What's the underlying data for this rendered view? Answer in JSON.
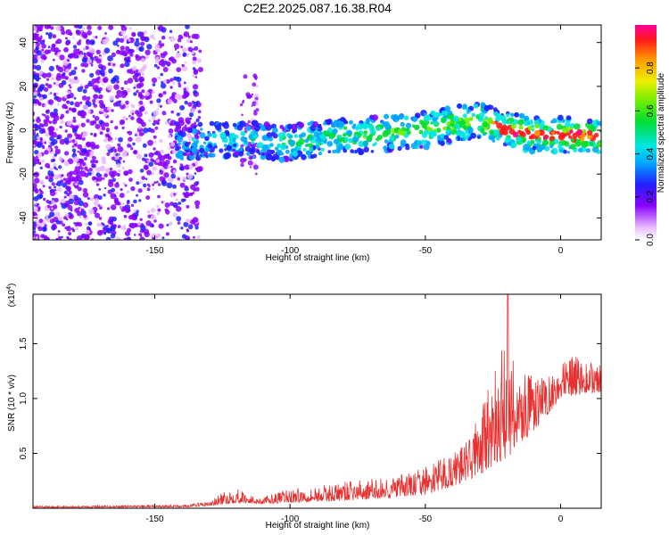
{
  "title": "C2E2.2025.087.16.38.R04",
  "chart_data": [
    {
      "type": "heatmap",
      "xlabel": "Height of straight line (km)",
      "ylabel": "Frequency (Hz)",
      "xlim": [
        -195,
        15
      ],
      "ylim": [
        -50,
        48
      ],
      "xticks": [
        -150,
        -100,
        -50,
        0
      ],
      "yticks": [
        -40,
        -20,
        0,
        20,
        40
      ],
      "xtick_labels": [
        "-150",
        "-100",
        "-50",
        "0"
      ],
      "ytick_labels": [
        "-40",
        "-20",
        "0",
        "20",
        "40"
      ],
      "ridge": {
        "x": [
          -140,
          -130,
          -120,
          -110,
          -100,
          -90,
          -80,
          -70,
          -60,
          -50,
          -40,
          -30,
          -25,
          -20,
          -10,
          0,
          10,
          15
        ],
        "y": [
          -6,
          -5,
          -4,
          -5,
          -6,
          -4,
          -3,
          -2,
          -1,
          0,
          3,
          4,
          3,
          0,
          -2,
          -2,
          -3,
          -3
        ]
      },
      "colorbar": {
        "label": "Normalized spectral amplitude",
        "range": [
          0,
          1
        ],
        "ticks": [
          0.0,
          0.2,
          0.4,
          0.6,
          0.8
        ],
        "tick_labels": [
          "0.0",
          "0.2",
          "0.4",
          "0.6",
          "0.8"
        ]
      },
      "grid": false
    },
    {
      "type": "line",
      "xlabel": "Height of straight line (km)",
      "ylabel": "SNR (10 * v/v)",
      "multiplier": "(x10^4)",
      "multiplier_base": "(x10",
      "multiplier_exp": "4",
      "multiplier_close": ")",
      "xlim": [
        -195,
        15
      ],
      "ylim": [
        0,
        1.95
      ],
      "xticks": [
        -150,
        -100,
        -50,
        0
      ],
      "yticks": [
        0.5,
        1.0,
        1.5
      ],
      "xtick_labels": [
        "-150",
        "-100",
        "-50",
        "0"
      ],
      "ytick_labels": [
        "0.5",
        "1.0",
        "1.5"
      ],
      "series": [
        {
          "color": "#e8302f",
          "envelope_x": [
            -195,
            -140,
            -130,
            -125,
            -120,
            -115,
            -110,
            -100,
            -90,
            -80,
            -70,
            -60,
            -50,
            -40,
            -35,
            -30,
            -25,
            -20,
            -15,
            -10,
            -5,
            0,
            5,
            10,
            15
          ],
          "envelope_y": [
            0.02,
            0.03,
            0.06,
            0.14,
            0.2,
            0.12,
            0.1,
            0.18,
            0.2,
            0.24,
            0.27,
            0.3,
            0.38,
            0.5,
            0.6,
            0.9,
            1.2,
            1.6,
            1.3,
            1.2,
            1.2,
            1.3,
            1.4,
            1.35,
            1.3
          ],
          "base_x": [
            -195,
            -140,
            -130,
            -120,
            -110,
            -100,
            -90,
            -80,
            -70,
            -60,
            -50,
            -40,
            -30,
            -20,
            -10,
            0,
            10,
            15
          ],
          "base_y": [
            0.005,
            0.01,
            0.02,
            0.05,
            0.04,
            0.05,
            0.06,
            0.07,
            0.08,
            0.1,
            0.12,
            0.2,
            0.3,
            0.45,
            0.7,
            1.0,
            1.05,
            1.05
          ],
          "peak": {
            "x": -19.5,
            "y": 1.95
          }
        }
      ],
      "grid": false
    }
  ]
}
